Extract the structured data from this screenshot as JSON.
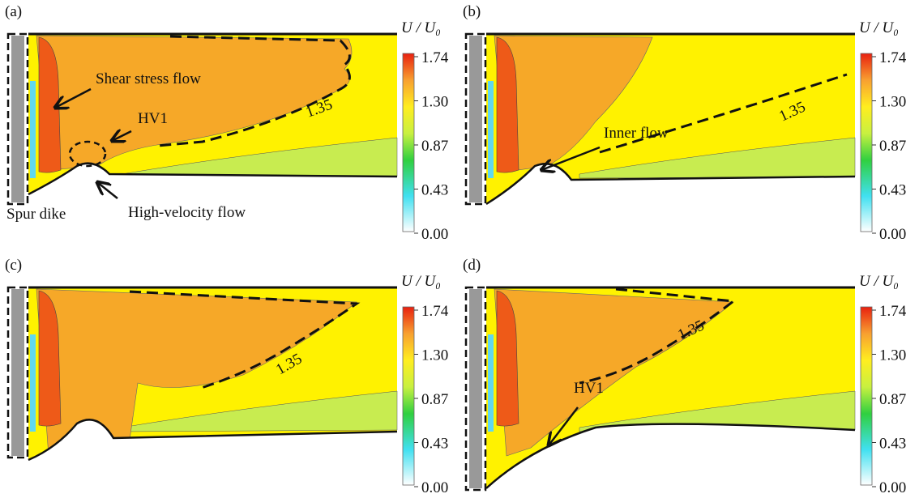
{
  "panels": [
    {
      "label": "(a)",
      "colorbar": {
        "title": "U / U₀",
        "ticks": [
          "1.74",
          "1.30",
          "0.87",
          "0.43",
          "0.00"
        ]
      },
      "annotations": [
        "Shear stress flow",
        "HV1",
        "High-velocity flow",
        "Spur dike",
        "1.35"
      ]
    },
    {
      "label": "(b)",
      "colorbar": {
        "title": "U / U₀",
        "ticks": [
          "1.74",
          "1.30",
          "0.87",
          "0.43",
          "0.00"
        ]
      },
      "annotations": [
        "Inner flow",
        "1.35"
      ]
    },
    {
      "label": "(c)",
      "colorbar": {
        "title": "U / U₀",
        "ticks": [
          "1.74",
          "1.30",
          "0.87",
          "0.43",
          "0.00"
        ]
      },
      "annotations": [
        "1.35"
      ]
    },
    {
      "label": "(d)",
      "colorbar": {
        "title": "U / U₀",
        "ticks": [
          "1.74",
          "1.30",
          "0.87",
          "0.43",
          "0.00"
        ]
      },
      "annotations": [
        "HV1",
        "1.35"
      ]
    }
  ]
}
